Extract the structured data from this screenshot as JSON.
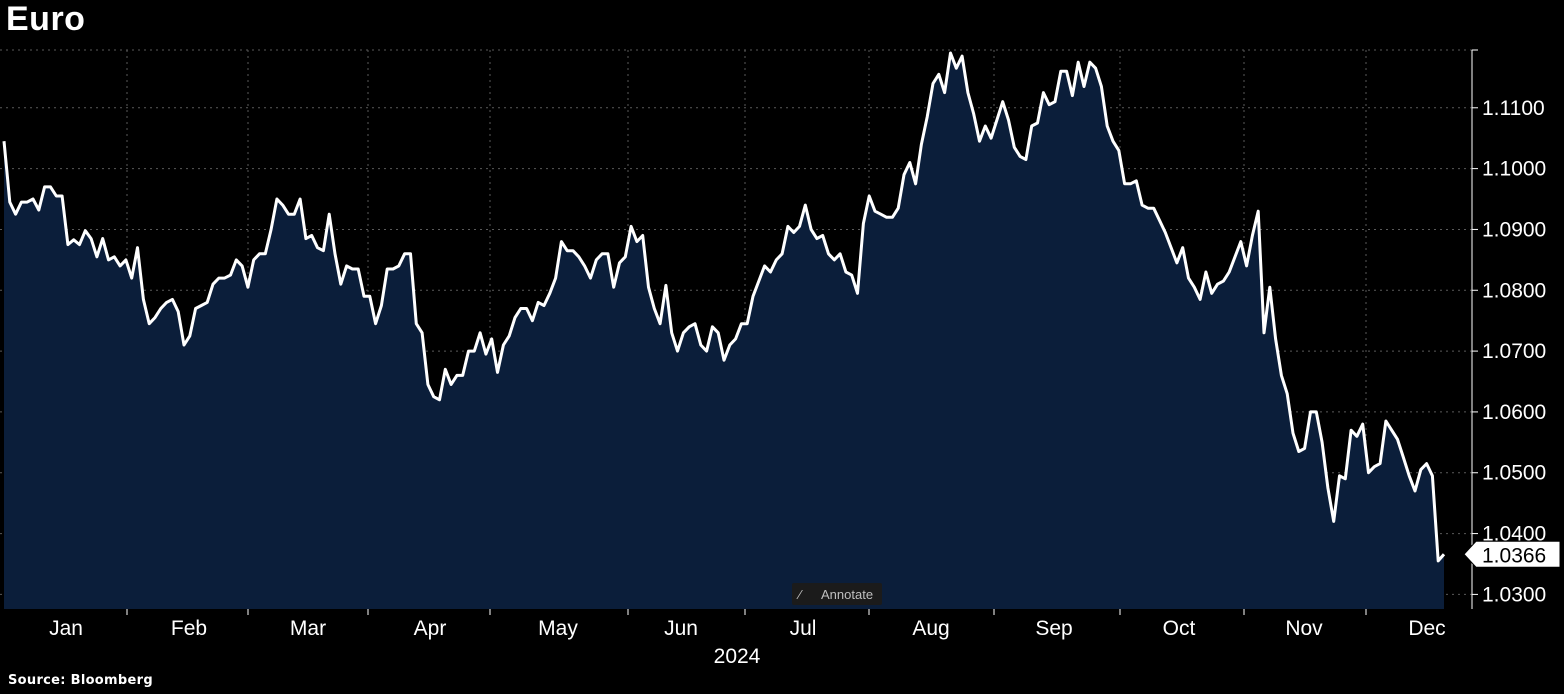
{
  "title": "Euro",
  "source": "Source: Bloomberg",
  "annotate_label": "Annotate",
  "annotate_icon": "pencil-icon",
  "colors": {
    "background": "#000000",
    "line": "#ffffff",
    "fill": "#0b1e3a",
    "grid": "#5a5a5a"
  },
  "chart_data": {
    "type": "area",
    "title": "Euro",
    "xlabel": "2024",
    "ylabel": "",
    "ylim": [
      1.0276,
      1.1195
    ],
    "x_start_index_label": "Jan",
    "month_labels": [
      "Jan",
      "Feb",
      "Mar",
      "Apr",
      "May",
      "Jun",
      "Jul",
      "Aug",
      "Sep",
      "Oct",
      "Nov",
      "Dec"
    ],
    "y_ticks": [
      "1.0300",
      "1.0400",
      "1.0500",
      "1.0600",
      "1.0700",
      "1.0800",
      "1.0900",
      "1.1000",
      "1.1100"
    ],
    "y_tick_values": [
      1.03,
      1.04,
      1.05,
      1.06,
      1.07,
      1.08,
      1.09,
      1.1,
      1.11
    ],
    "last_value_label": "1.0366",
    "grid": true,
    "series": [
      {
        "values": [
          1.1045,
          1.0945,
          1.0925,
          1.0945,
          1.0945,
          1.095,
          1.0932,
          1.097,
          1.097,
          1.0955,
          1.0955,
          1.0875,
          1.0883,
          1.0875,
          1.0898,
          1.0885,
          1.0855,
          1.0885,
          1.085,
          1.0855,
          1.084,
          1.085,
          1.082,
          1.087,
          1.0785,
          1.0745,
          1.0755,
          1.077,
          1.078,
          1.0785,
          1.0765,
          1.071,
          1.0725,
          1.077,
          1.0775,
          1.078,
          1.081,
          1.082,
          1.082,
          1.0825,
          1.085,
          1.084,
          1.0805,
          1.085,
          1.086,
          1.086,
          1.09,
          1.095,
          1.094,
          1.0925,
          1.0925,
          1.095,
          1.0885,
          1.089,
          1.087,
          1.0865,
          1.0925,
          1.086,
          1.081,
          1.084,
          1.0835,
          1.0835,
          1.079,
          1.079,
          1.0745,
          1.0775,
          1.0835,
          1.0835,
          1.084,
          1.086,
          1.086,
          1.0745,
          1.073,
          1.0645,
          1.0625,
          1.062,
          1.067,
          1.0645,
          1.066,
          1.066,
          1.07,
          1.07,
          1.073,
          1.0695,
          1.072,
          1.0665,
          1.071,
          1.0725,
          1.0755,
          1.077,
          1.077,
          1.075,
          1.078,
          1.0775,
          1.0795,
          1.082,
          1.088,
          1.0865,
          1.0865,
          1.0855,
          1.084,
          1.082,
          1.085,
          1.086,
          1.086,
          1.0805,
          1.0845,
          1.0855,
          1.0905,
          1.088,
          1.089,
          1.0805,
          1.077,
          1.0745,
          1.0808,
          1.073,
          1.07,
          1.073,
          1.074,
          1.0745,
          1.071,
          1.07,
          1.074,
          1.073,
          1.0685,
          1.071,
          1.072,
          1.0745,
          1.0745,
          1.079,
          1.0815,
          1.084,
          1.083,
          1.085,
          1.086,
          1.0905,
          1.0895,
          1.0905,
          1.094,
          1.09,
          1.0885,
          1.089,
          1.086,
          1.085,
          1.086,
          1.083,
          1.0825,
          1.0795,
          1.091,
          1.0955,
          1.093,
          1.0925,
          1.092,
          1.092,
          1.0935,
          1.099,
          1.101,
          1.0975,
          1.104,
          1.1085,
          1.114,
          1.1155,
          1.1125,
          1.119,
          1.1165,
          1.1185,
          1.1125,
          1.109,
          1.1045,
          1.107,
          1.105,
          1.108,
          1.111,
          1.108,
          1.1035,
          1.102,
          1.1015,
          1.107,
          1.1075,
          1.1125,
          1.1105,
          1.111,
          1.116,
          1.116,
          1.112,
          1.1175,
          1.1135,
          1.1175,
          1.1165,
          1.1135,
          1.107,
          1.1045,
          1.103,
          1.0975,
          1.0975,
          1.098,
          1.094,
          1.0935,
          1.0935,
          1.0915,
          1.0895,
          1.087,
          1.0845,
          1.087,
          1.082,
          1.0805,
          1.0785,
          1.083,
          1.0795,
          1.081,
          1.0815,
          1.083,
          1.0855,
          1.088,
          1.084,
          1.089,
          1.093,
          1.073,
          1.0805,
          1.072,
          1.066,
          1.063,
          1.0565,
          1.0535,
          1.054,
          1.06,
          1.06,
          1.055,
          1.0475,
          1.042,
          1.0495,
          1.049,
          1.057,
          1.056,
          1.058,
          1.05,
          1.051,
          1.0515,
          1.0585,
          1.057,
          1.0555,
          1.0525,
          1.0495,
          1.047,
          1.0505,
          1.0515,
          1.0495,
          1.0355,
          1.0366
        ]
      }
    ]
  }
}
